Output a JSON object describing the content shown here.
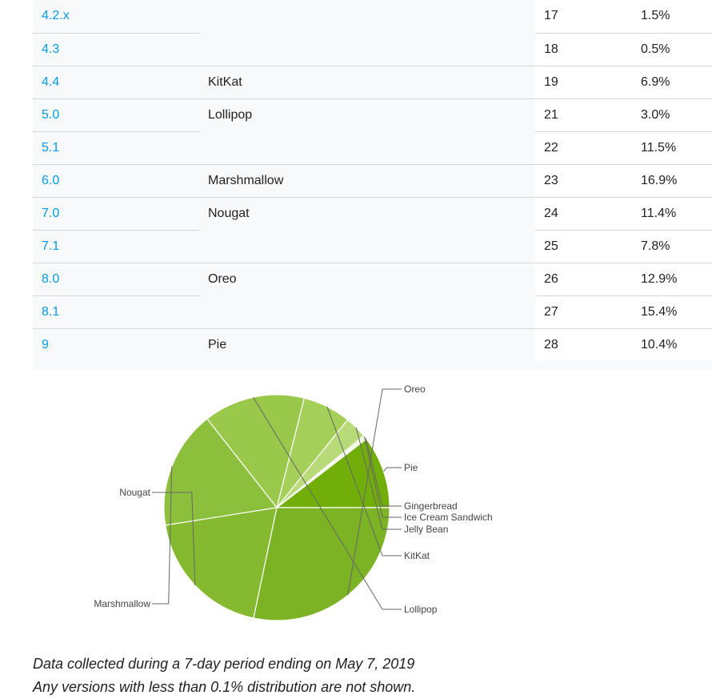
{
  "table": {
    "rows": [
      {
        "version": "4.2.x",
        "codename": "",
        "api": "17",
        "distribution": "1.5%"
      },
      {
        "version": "4.3",
        "codename": "",
        "api": "18",
        "distribution": "0.5%"
      },
      {
        "version": "4.4",
        "codename": "KitKat",
        "api": "19",
        "distribution": "6.9%"
      },
      {
        "version": "5.0",
        "codename": "Lollipop",
        "api": "21",
        "distribution": "3.0%"
      },
      {
        "version": "5.1",
        "codename": "",
        "api": "22",
        "distribution": "11.5%"
      },
      {
        "version": "6.0",
        "codename": "Marshmallow",
        "api": "23",
        "distribution": "16.9%"
      },
      {
        "version": "7.0",
        "codename": "Nougat",
        "api": "24",
        "distribution": "11.4%"
      },
      {
        "version": "7.1",
        "codename": "",
        "api": "25",
        "distribution": "7.8%"
      },
      {
        "version": "8.0",
        "codename": "Oreo",
        "api": "26",
        "distribution": "12.9%"
      },
      {
        "version": "8.1",
        "codename": "",
        "api": "27",
        "distribution": "15.4%"
      },
      {
        "version": "9",
        "codename": "Pie",
        "api": "28",
        "distribution": "10.4%"
      }
    ]
  },
  "chart_data": {
    "type": "pie",
    "categories": [
      "Pie",
      "Gingerbread",
      "Ice Cream Sandwich",
      "Jelly Bean",
      "KitKat",
      "Lollipop",
      "Marshmallow",
      "Nougat",
      "Oreo"
    ],
    "values": [
      10.4,
      0.3,
      0.3,
      3.2,
      6.9,
      14.5,
      16.9,
      19.2,
      28.3
    ],
    "colors": {
      "Pie": "#71ae09",
      "Gingerbread": "#f4f9e9",
      "Ice Cream Sandwich": "#e2efc4",
      "Jelly Bean": "#b8da78",
      "KitKat": "#a4cf59",
      "Lollipop": "#99c84b",
      "Marshmallow": "#8cbf3c",
      "Nougat": "#84b930",
      "Oreo": "#7bb325"
    },
    "legend": "labels beside slices"
  },
  "footnotes": {
    "line1": "Data collected during a 7-day period ending on May 7, 2019",
    "line2": "Any versions with less than 0.1% distribution are not shown."
  }
}
